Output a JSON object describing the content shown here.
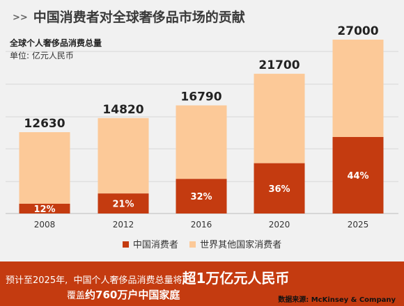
{
  "header": {
    "marker": ">>",
    "title": "中国消费者对全球奢侈品市场的贡献"
  },
  "chart_data": {
    "type": "bar",
    "stacked": true,
    "title": "全球个人奢侈品消费总量",
    "unit_label": "单位:  亿元人民币",
    "categories": [
      "2008",
      "2012",
      "2016",
      "2020",
      "2025"
    ],
    "totals": [
      12630,
      14820,
      16790,
      21700,
      27000
    ],
    "total_labels": [
      "12630",
      "14820",
      "16790",
      "21700",
      "27000"
    ],
    "china_share_labels": [
      "12%",
      "21%",
      "32%",
      "36%",
      "44%"
    ],
    "series": [
      {
        "name": "中国消费者",
        "color": "#c43b10",
        "values": [
          1516,
          3112,
          5373,
          7812,
          11880
        ]
      },
      {
        "name": "世界其他国家消费者",
        "color": "#fcc998",
        "values": [
          11114,
          11708,
          11417,
          13888,
          15120
        ]
      }
    ],
    "ylim": [
      0,
      27000
    ],
    "grid": true,
    "legend_position": "bottom"
  },
  "footer": {
    "text_prefix": "预计至2025年,",
    "text_mid": "中国个人奢侈品消费总量将",
    "text_big": "超1万亿元人民币",
    "line2_prefix": "覆盖",
    "line2_big": "约760万户中国家庭",
    "source": "数据来源: McKinsey & Company"
  },
  "colors": {
    "accent": "#c43b10",
    "light": "#fcc998",
    "background": "#f1f1f1"
  }
}
